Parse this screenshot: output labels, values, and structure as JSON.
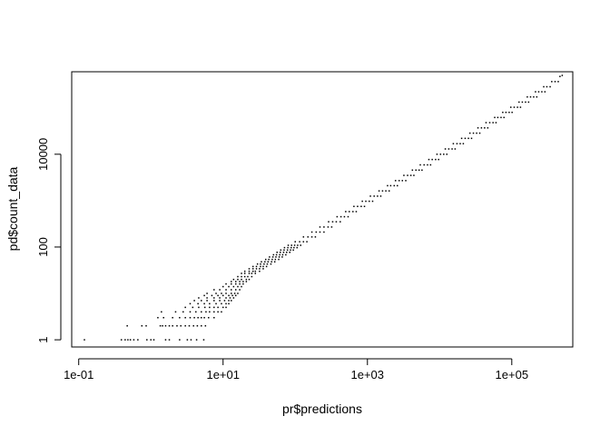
{
  "chart_data": {
    "type": "scatter",
    "title": "",
    "xlabel": "pr$predictions",
    "ylabel": "pd$count_data",
    "x_scale": "log10",
    "y_scale": "log10",
    "xlim": [
      0.08,
      700000
    ],
    "ylim": [
      0.7,
      600000
    ],
    "x_ticks": [
      {
        "value": 0.1,
        "label": "1e-01"
      },
      {
        "value": 10,
        "label": "1e+01"
      },
      {
        "value": 1000,
        "label": "1e+03"
      },
      {
        "value": 100000,
        "label": "1e+05"
      }
    ],
    "y_ticks": [
      {
        "value": 1,
        "label": "1"
      },
      {
        "value": 100,
        "label": "100"
      },
      {
        "value": 10000,
        "label": "10000"
      }
    ],
    "grid": false,
    "legend": "none",
    "marker_color": "#000000",
    "points": [
      [
        0.12,
        1
      ],
      [
        0.39,
        1
      ],
      [
        0.44,
        1
      ],
      [
        0.48,
        1
      ],
      [
        0.52,
        1
      ],
      [
        0.58,
        1
      ],
      [
        0.66,
        1
      ],
      [
        0.88,
        1
      ],
      [
        1.0,
        1
      ],
      [
        1.1,
        1
      ],
      [
        1.6,
        1
      ],
      [
        1.8,
        1
      ],
      [
        2.5,
        1
      ],
      [
        3.2,
        1
      ],
      [
        3.6,
        1
      ],
      [
        4.3,
        1
      ],
      [
        5.4,
        1
      ],
      [
        0.47,
        2
      ],
      [
        0.75,
        2
      ],
      [
        0.86,
        2
      ],
      [
        1.35,
        2
      ],
      [
        1.45,
        2
      ],
      [
        1.6,
        2
      ],
      [
        1.8,
        2
      ],
      [
        2.0,
        2
      ],
      [
        2.3,
        2
      ],
      [
        2.6,
        2
      ],
      [
        3.0,
        2
      ],
      [
        3.4,
        2
      ],
      [
        3.9,
        2
      ],
      [
        4.4,
        2
      ],
      [
        5.0,
        2
      ],
      [
        5.7,
        2
      ],
      [
        1.25,
        3
      ],
      [
        1.5,
        3
      ],
      [
        2.0,
        3
      ],
      [
        2.5,
        3
      ],
      [
        3.0,
        3
      ],
      [
        3.5,
        3
      ],
      [
        4.0,
        3
      ],
      [
        4.5,
        3
      ],
      [
        5.0,
        3
      ],
      [
        5.5,
        3
      ],
      [
        6.3,
        3
      ],
      [
        7.5,
        3
      ],
      [
        1.4,
        4
      ],
      [
        2.2,
        4
      ],
      [
        2.8,
        4
      ],
      [
        3.5,
        4
      ],
      [
        4.2,
        4
      ],
      [
        5.0,
        4
      ],
      [
        5.8,
        4
      ],
      [
        6.5,
        4
      ],
      [
        7.5,
        4
      ],
      [
        8.5,
        4
      ],
      [
        9.5,
        4
      ],
      [
        3.0,
        5
      ],
      [
        3.8,
        5
      ],
      [
        4.6,
        5
      ],
      [
        5.6,
        5
      ],
      [
        6.5,
        5
      ],
      [
        7.5,
        5
      ],
      [
        8.5,
        5
      ],
      [
        10,
        5
      ],
      [
        11,
        5
      ],
      [
        3.5,
        6
      ],
      [
        4.5,
        6
      ],
      [
        5.5,
        6
      ],
      [
        6.5,
        6
      ],
      [
        8,
        6
      ],
      [
        9.5,
        6
      ],
      [
        11,
        6
      ],
      [
        12,
        6
      ],
      [
        4.0,
        7
      ],
      [
        5.0,
        7
      ],
      [
        6.0,
        7
      ],
      [
        7.5,
        7
      ],
      [
        9,
        7
      ],
      [
        10.5,
        7
      ],
      [
        12,
        7
      ],
      [
        13,
        7
      ],
      [
        4.6,
        8
      ],
      [
        6,
        8
      ],
      [
        7.5,
        8
      ],
      [
        9,
        8
      ],
      [
        11,
        8
      ],
      [
        12.5,
        8
      ],
      [
        14,
        8
      ],
      [
        5.5,
        9
      ],
      [
        7,
        9
      ],
      [
        8.5,
        9
      ],
      [
        10,
        9
      ],
      [
        12,
        9
      ],
      [
        13.5,
        9
      ],
      [
        15,
        9
      ],
      [
        6,
        10
      ],
      [
        8,
        10
      ],
      [
        9.5,
        10
      ],
      [
        11,
        10
      ],
      [
        13,
        10
      ],
      [
        14.5,
        10
      ],
      [
        16,
        10
      ],
      [
        7.5,
        12
      ],
      [
        9,
        12
      ],
      [
        11,
        12
      ],
      [
        13,
        12
      ],
      [
        15,
        12
      ],
      [
        17,
        12
      ],
      [
        10,
        14
      ],
      [
        12,
        14
      ],
      [
        14,
        14
      ],
      [
        16,
        14
      ],
      [
        18,
        14
      ],
      [
        11,
        16
      ],
      [
        13,
        16
      ],
      [
        15,
        16
      ],
      [
        17,
        16
      ],
      [
        19,
        16
      ],
      [
        13,
        18
      ],
      [
        15,
        18
      ],
      [
        17,
        18
      ],
      [
        19,
        18
      ],
      [
        21,
        18
      ],
      [
        14,
        20
      ],
      [
        16,
        20
      ],
      [
        18,
        20
      ],
      [
        21,
        20
      ],
      [
        23,
        20
      ],
      [
        16,
        23
      ],
      [
        18,
        23
      ],
      [
        20,
        23
      ],
      [
        22,
        23
      ],
      [
        25,
        23
      ],
      [
        18,
        27
      ],
      [
        20,
        27
      ],
      [
        23,
        27
      ],
      [
        25,
        27
      ],
      [
        28,
        27
      ],
      [
        20,
        30
      ],
      [
        23,
        30
      ],
      [
        26,
        30
      ],
      [
        28,
        30
      ],
      [
        32,
        30
      ],
      [
        23,
        34
      ],
      [
        26,
        34
      ],
      [
        29,
        34
      ],
      [
        32,
        34
      ],
      [
        36,
        34
      ],
      [
        26,
        38
      ],
      [
        29,
        38
      ],
      [
        33,
        38
      ],
      [
        36,
        38
      ],
      [
        40,
        38
      ],
      [
        30,
        43
      ],
      [
        33,
        43
      ],
      [
        37,
        43
      ],
      [
        41,
        43
      ],
      [
        46,
        43
      ],
      [
        34,
        48
      ],
      [
        38,
        48
      ],
      [
        42,
        48
      ],
      [
        47,
        48
      ],
      [
        52,
        48
      ],
      [
        39,
        54
      ],
      [
        43,
        54
      ],
      [
        48,
        54
      ],
      [
        53,
        54
      ],
      [
        59,
        54
      ],
      [
        44,
        61
      ],
      [
        49,
        61
      ],
      [
        54,
        61
      ],
      [
        60,
        61
      ],
      [
        66,
        61
      ],
      [
        50,
        68
      ],
      [
        55,
        68
      ],
      [
        61,
        68
      ],
      [
        67,
        68
      ],
      [
        74,
        68
      ],
      [
        56,
        77
      ],
      [
        62,
        77
      ],
      [
        69,
        77
      ],
      [
        76,
        77
      ],
      [
        84,
        77
      ],
      [
        63,
        86
      ],
      [
        70,
        86
      ],
      [
        78,
        86
      ],
      [
        86,
        86
      ],
      [
        94,
        86
      ],
      [
        71,
        97
      ],
      [
        79,
        97
      ],
      [
        88,
        97
      ],
      [
        96,
        97
      ],
      [
        106,
        97
      ],
      [
        80,
        109
      ],
      [
        89,
        109
      ],
      [
        98,
        109
      ],
      [
        108,
        109
      ],
      [
        119,
        109
      ],
      [
        100,
        130
      ],
      [
        115,
        130
      ],
      [
        130,
        130
      ],
      [
        145,
        130
      ],
      [
        130,
        165
      ],
      [
        150,
        165
      ],
      [
        170,
        165
      ],
      [
        190,
        165
      ],
      [
        170,
        210
      ],
      [
        195,
        210
      ],
      [
        220,
        210
      ],
      [
        250,
        210
      ],
      [
        220,
        270
      ],
      [
        250,
        270
      ],
      [
        285,
        270
      ],
      [
        320,
        270
      ],
      [
        290,
        350
      ],
      [
        330,
        350
      ],
      [
        370,
        350
      ],
      [
        420,
        350
      ],
      [
        380,
        450
      ],
      [
        430,
        450
      ],
      [
        480,
        450
      ],
      [
        540,
        450
      ],
      [
        500,
        580
      ],
      [
        560,
        580
      ],
      [
        630,
        580
      ],
      [
        700,
        580
      ],
      [
        650,
        750
      ],
      [
        730,
        750
      ],
      [
        820,
        750
      ],
      [
        910,
        750
      ],
      [
        850,
        970
      ],
      [
        950,
        970
      ],
      [
        1060,
        970
      ],
      [
        1180,
        970
      ],
      [
        1100,
        1250
      ],
      [
        1240,
        1250
      ],
      [
        1380,
        1250
      ],
      [
        1530,
        1250
      ],
      [
        1450,
        1620
      ],
      [
        1620,
        1620
      ],
      [
        1800,
        1620
      ],
      [
        2000,
        1620
      ],
      [
        1900,
        2100
      ],
      [
        2100,
        2100
      ],
      [
        2350,
        2100
      ],
      [
        2600,
        2100
      ],
      [
        2450,
        2700
      ],
      [
        2750,
        2700
      ],
      [
        3050,
        2700
      ],
      [
        3400,
        2700
      ],
      [
        3200,
        3500
      ],
      [
        3600,
        3500
      ],
      [
        4000,
        3500
      ],
      [
        4400,
        3500
      ],
      [
        4200,
        4550
      ],
      [
        4700,
        4550
      ],
      [
        5200,
        4550
      ],
      [
        5700,
        4550
      ],
      [
        5400,
        5900
      ],
      [
        6100,
        5900
      ],
      [
        6800,
        5900
      ],
      [
        7500,
        5900
      ],
      [
        7100,
        7700
      ],
      [
        7900,
        7700
      ],
      [
        8800,
        7700
      ],
      [
        9700,
        7700
      ],
      [
        9200,
        10000
      ],
      [
        10300,
        10000
      ],
      [
        11400,
        10000
      ],
      [
        12600,
        10000
      ],
      [
        12000,
        13000
      ],
      [
        13400,
        13000
      ],
      [
        14900,
        13000
      ],
      [
        16400,
        13000
      ],
      [
        15500,
        16900
      ],
      [
        17400,
        16900
      ],
      [
        19300,
        16900
      ],
      [
        21300,
        16900
      ],
      [
        20200,
        22000
      ],
      [
        22600,
        22000
      ],
      [
        25100,
        22000
      ],
      [
        27700,
        22000
      ],
      [
        26300,
        28500
      ],
      [
        29400,
        28500
      ],
      [
        32600,
        28500
      ],
      [
        36000,
        28500
      ],
      [
        34000,
        37000
      ],
      [
        38000,
        37000
      ],
      [
        42000,
        37000
      ],
      [
        46500,
        37000
      ],
      [
        44000,
        48000
      ],
      [
        49500,
        48000
      ],
      [
        55000,
        48000
      ],
      [
        60500,
        48000
      ],
      [
        58000,
        62000
      ],
      [
        64000,
        62000
      ],
      [
        71000,
        62000
      ],
      [
        78000,
        62000
      ],
      [
        75000,
        80000
      ],
      [
        83000,
        80000
      ],
      [
        92000,
        80000
      ],
      [
        101000,
        80000
      ],
      [
        97000,
        103000
      ],
      [
        108000,
        103000
      ],
      [
        120000,
        103000
      ],
      [
        132000,
        103000
      ],
      [
        126000,
        133000
      ],
      [
        140000,
        133000
      ],
      [
        155000,
        133000
      ],
      [
        171000,
        133000
      ],
      [
        164000,
        172000
      ],
      [
        182000,
        172000
      ],
      [
        201000,
        172000
      ],
      [
        222000,
        172000
      ],
      [
        213000,
        222000
      ],
      [
        236000,
        222000
      ],
      [
        261000,
        222000
      ],
      [
        288000,
        222000
      ],
      [
        277000,
        285000
      ],
      [
        306000,
        285000
      ],
      [
        340000,
        285000
      ],
      [
        358000,
        368000
      ],
      [
        398000,
        368000
      ],
      [
        440000,
        368000
      ],
      [
        465000,
        475000
      ],
      [
        500000,
        500000
      ]
    ]
  }
}
